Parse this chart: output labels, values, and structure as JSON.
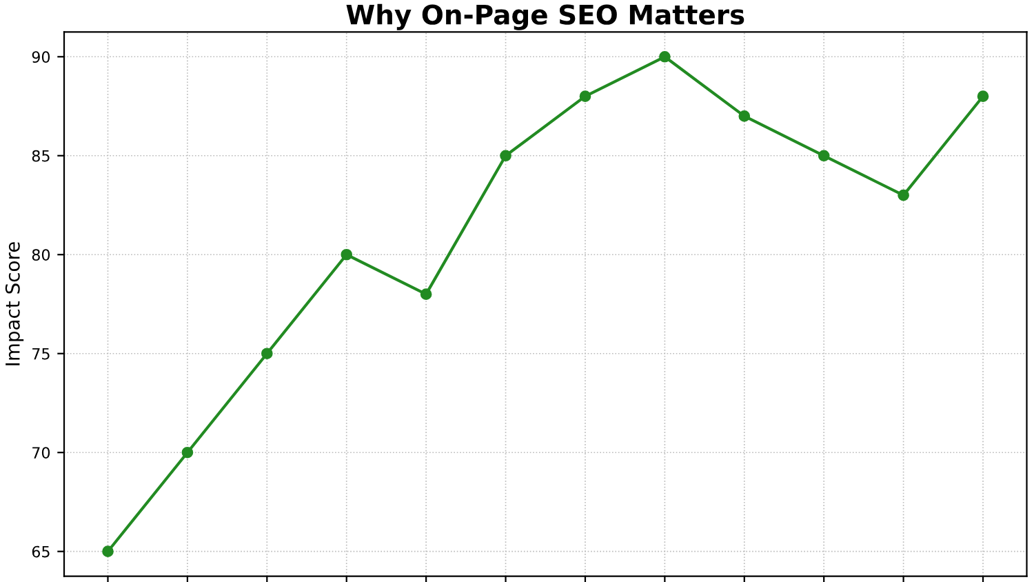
{
  "chart_data": {
    "type": "line",
    "title": "Why On-Page SEO Matters",
    "ylabel": "Impact Score",
    "categories": [
      null,
      null,
      null,
      null,
      null,
      null,
      null,
      null,
      null,
      null,
      null,
      null
    ],
    "series": [
      {
        "color": "#228b22",
        "values": [
          65,
          70,
          75,
          80,
          78,
          85,
          88,
          90,
          87,
          85,
          83,
          88
        ]
      }
    ],
    "ylim": [
      63.75,
      91.25
    ],
    "yticks": [
      65,
      70,
      75,
      80,
      85,
      90
    ],
    "grid": true,
    "marker": "circle",
    "line_style": "solid",
    "tick_labels": "y",
    "legend": false
  }
}
